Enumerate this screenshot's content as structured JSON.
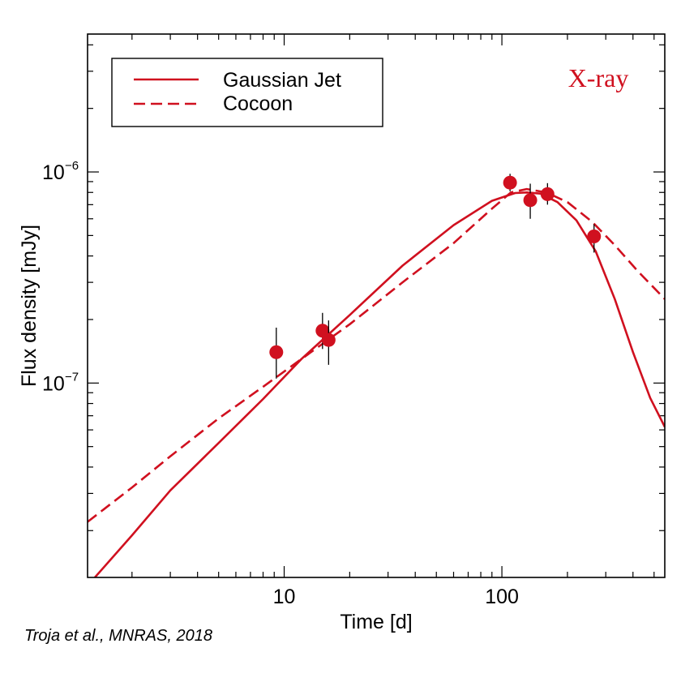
{
  "chart_data": {
    "type": "line",
    "scale": {
      "x": "log",
      "y": "log"
    },
    "xlim": [
      1.25,
      560
    ],
    "ylim": [
      1.2e-08,
      4.5e-06
    ],
    "xlabel": "Time [d]",
    "ylabel": "Flux density [mJy]",
    "x_tick_labels": [
      {
        "value": 10,
        "label": "10"
      },
      {
        "value": 100,
        "label": "100"
      }
    ],
    "y_tick_labels": [
      {
        "value": 1e-07,
        "base": "10",
        "exp": "−7"
      },
      {
        "value": 1e-06,
        "base": "10",
        "exp": "−6"
      }
    ],
    "annotation": {
      "text": "X-ray",
      "color": "#d0101f"
    },
    "legend": {
      "position": "top-left",
      "entries": [
        "Gaussian Jet",
        "Cocoon"
      ]
    },
    "series": [
      {
        "name": "Gaussian Jet",
        "style": "solid",
        "color": "#d0101f",
        "x": [
          1.35,
          2,
          3,
          5,
          8,
          12,
          20,
          35,
          60,
          90,
          115,
          130,
          150,
          180,
          220,
          270,
          330,
          400,
          480,
          560
        ],
        "y": [
          1.2e-08,
          1.9e-08,
          3.1e-08,
          5.2e-08,
          8.4e-08,
          1.3e-07,
          2.1e-07,
          3.6e-07,
          5.6e-07,
          7.3e-07,
          7.95e-07,
          8e-07,
          7.9e-07,
          7.2e-07,
          5.9e-07,
          4.2e-07,
          2.5e-07,
          1.4e-07,
          8.5e-08,
          6.2e-08
        ]
      },
      {
        "name": "Cocoon",
        "style": "dashed",
        "color": "#d0101f",
        "x": [
          1.25,
          2,
          3,
          5,
          8,
          12,
          20,
          35,
          60,
          90,
          110,
          130,
          160,
          200,
          260,
          330,
          420,
          560
        ],
        "y": [
          2.2e-08,
          3.2e-08,
          4.5e-08,
          6.8e-08,
          9.6e-08,
          1.3e-07,
          1.9e-07,
          3e-07,
          4.6e-07,
          6.7e-07,
          8e-07,
          8.3e-07,
          8e-07,
          7.2e-07,
          5.8e-07,
          4.5e-07,
          3.4e-07,
          2.5e-07
        ]
      },
      {
        "name": "X-ray data",
        "style": "points",
        "color": "#d0101f",
        "points": [
          {
            "x": 9.2,
            "y": 1.4e-07,
            "ylo": 1.05e-07,
            "yhi": 1.83e-07
          },
          {
            "x": 15.0,
            "y": 1.77e-07,
            "ylo": 1.45e-07,
            "yhi": 2.15e-07
          },
          {
            "x": 16.0,
            "y": 1.6e-07,
            "ylo": 1.22e-07,
            "yhi": 1.98e-07
          },
          {
            "x": 109,
            "y": 8.9e-07,
            "ylo": 8.1e-07,
            "yhi": 9.8e-07
          },
          {
            "x": 135,
            "y": 7.35e-07,
            "ylo": 6e-07,
            "yhi": 8.8e-07
          },
          {
            "x": 162,
            "y": 7.85e-07,
            "ylo": 7e-07,
            "yhi": 8.85e-07
          },
          {
            "x": 265,
            "y": 4.95e-07,
            "ylo": 4.15e-07,
            "yhi": 5.65e-07
          }
        ]
      }
    ]
  },
  "credit": "Troja et al., MNRAS, 2018"
}
